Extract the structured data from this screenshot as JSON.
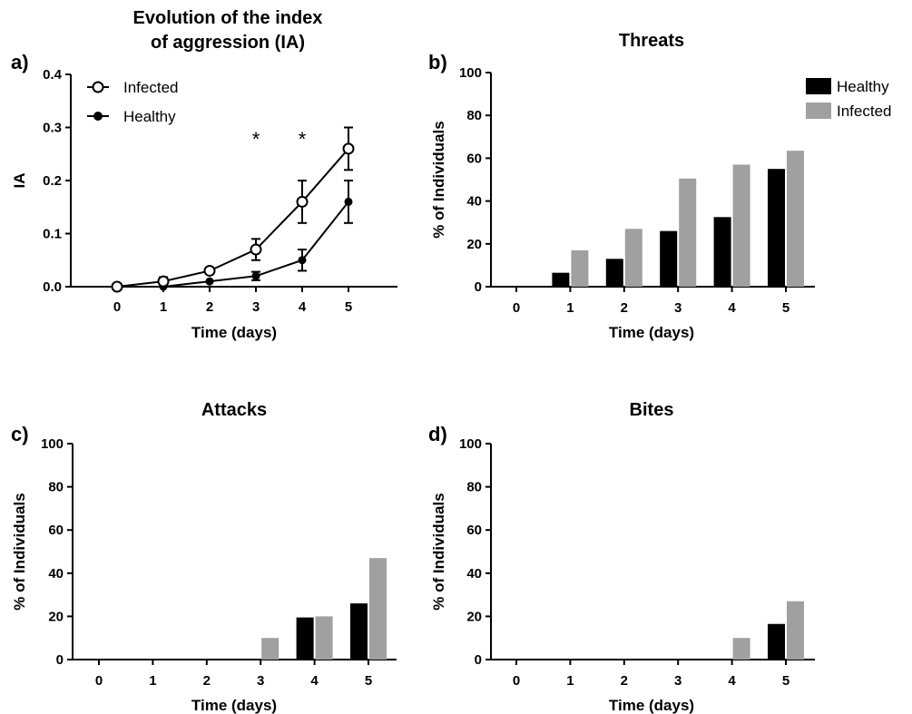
{
  "colors": {
    "healthy": "#000000",
    "infected": "#a0a0a0",
    "axis": "#000000"
  },
  "chart_data": [
    {
      "panel": "a)",
      "type": "line",
      "title_lines": [
        "Evolution of the index",
        "of aggression (IA)"
      ],
      "xlabel": "Time (days)",
      "ylabel": "IA",
      "x": [
        0,
        1,
        2,
        3,
        4,
        5
      ],
      "xticks": [
        "0",
        "1",
        "2",
        "3",
        "4",
        "5"
      ],
      "yticks": [
        "0.0",
        "0.1",
        "0.2",
        "0.3",
        "0.4"
      ],
      "ylim": [
        0,
        0.4
      ],
      "legend_position": "top-left",
      "series": [
        {
          "name": "Infected",
          "marker": "open-circle",
          "values": [
            0.0,
            0.01,
            0.03,
            0.07,
            0.16,
            0.26
          ],
          "err": [
            0,
            0.008,
            0.006,
            0.02,
            0.04,
            0.04
          ]
        },
        {
          "name": "Healthy",
          "marker": "filled-circle",
          "values": [
            0.0,
            0.0,
            0.01,
            0.02,
            0.05,
            0.16
          ],
          "err": [
            0,
            0,
            0,
            0.008,
            0.02,
            0.04
          ]
        }
      ],
      "annotations": [
        {
          "x": 3,
          "text": "*"
        },
        {
          "x": 4,
          "text": "*"
        }
      ]
    },
    {
      "panel": "b)",
      "type": "bar",
      "title": "Threats",
      "xlabel": "Time (days)",
      "ylabel": "% of Individuals",
      "categories": [
        "0",
        "1",
        "2",
        "3",
        "4",
        "5"
      ],
      "yticks": [
        "0",
        "20",
        "40",
        "60",
        "80",
        "100"
      ],
      "ylim": [
        0,
        100
      ],
      "legend_position": "top-right",
      "series": [
        {
          "name": "Healthy",
          "values": [
            0,
            6.5,
            13,
            26,
            32.5,
            55
          ]
        },
        {
          "name": "Infected",
          "values": [
            0,
            17,
            27,
            50.5,
            57,
            63.5
          ]
        }
      ]
    },
    {
      "panel": "c)",
      "type": "bar",
      "title": "Attacks",
      "xlabel": "Time (days)",
      "ylabel": "% of Individuals",
      "categories": [
        "0",
        "1",
        "2",
        "3",
        "4",
        "5"
      ],
      "yticks": [
        "0",
        "20",
        "40",
        "60",
        "80",
        "100"
      ],
      "ylim": [
        0,
        100
      ],
      "series": [
        {
          "values": [
            0,
            0,
            0,
            0,
            19.5,
            26
          ]
        },
        {
          "values": [
            0,
            0,
            0,
            10,
            20,
            47
          ]
        }
      ]
    },
    {
      "panel": "d)",
      "type": "bar",
      "title": "Bites",
      "xlabel": "Time (days)",
      "ylabel": "% of Individuals",
      "categories": [
        "0",
        "1",
        "2",
        "3",
        "4",
        "5"
      ],
      "yticks": [
        "0",
        "20",
        "40",
        "60",
        "80",
        "100"
      ],
      "ylim": [
        0,
        100
      ],
      "series": [
        {
          "values": [
            0,
            0,
            0,
            0,
            0,
            16.5
          ]
        },
        {
          "values": [
            0,
            0,
            0,
            0,
            10,
            27
          ]
        }
      ]
    }
  ]
}
